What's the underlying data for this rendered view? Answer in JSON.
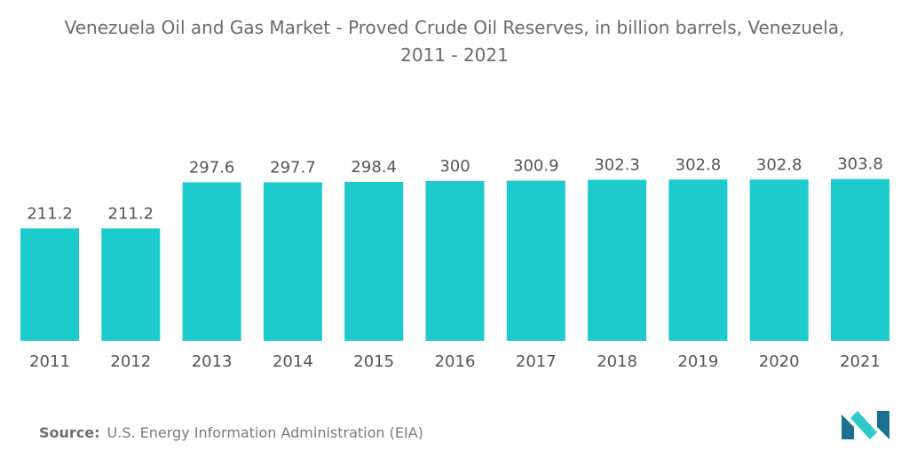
{
  "title_line1": "Venezuela Oil and Gas Market - Proved Crude Oil Reserves, in billion barrels, Venezuela,",
  "title_line2": "2011 - 2021",
  "source_label": "Source:",
  "source_text": "U.S. Energy Information Administration (EIA)",
  "colors": {
    "bar": "#1ecbcc",
    "text": "#555555",
    "logo_dark": "#1c6f8f",
    "logo_light": "#2ec8c8"
  },
  "chart_data": {
    "type": "bar",
    "title": "Venezuela Oil and Gas Market - Proved Crude Oil Reserves, in billion barrels, Venezuela, 2011 - 2021",
    "categories": [
      "2011",
      "2012",
      "2013",
      "2014",
      "2015",
      "2016",
      "2017",
      "2018",
      "2019",
      "2020",
      "2021"
    ],
    "values": [
      211.2,
      211.2,
      297.6,
      297.7,
      298.4,
      300,
      300.9,
      302.3,
      302.8,
      302.8,
      303.8
    ],
    "value_labels": [
      "211.2",
      "211.2",
      "297.6",
      "297.7",
      "298.4",
      "300",
      "300.9",
      "302.3",
      "302.8",
      "302.8",
      "303.8"
    ],
    "xlabel": "",
    "ylabel": "",
    "grid": false,
    "legend": "none"
  }
}
